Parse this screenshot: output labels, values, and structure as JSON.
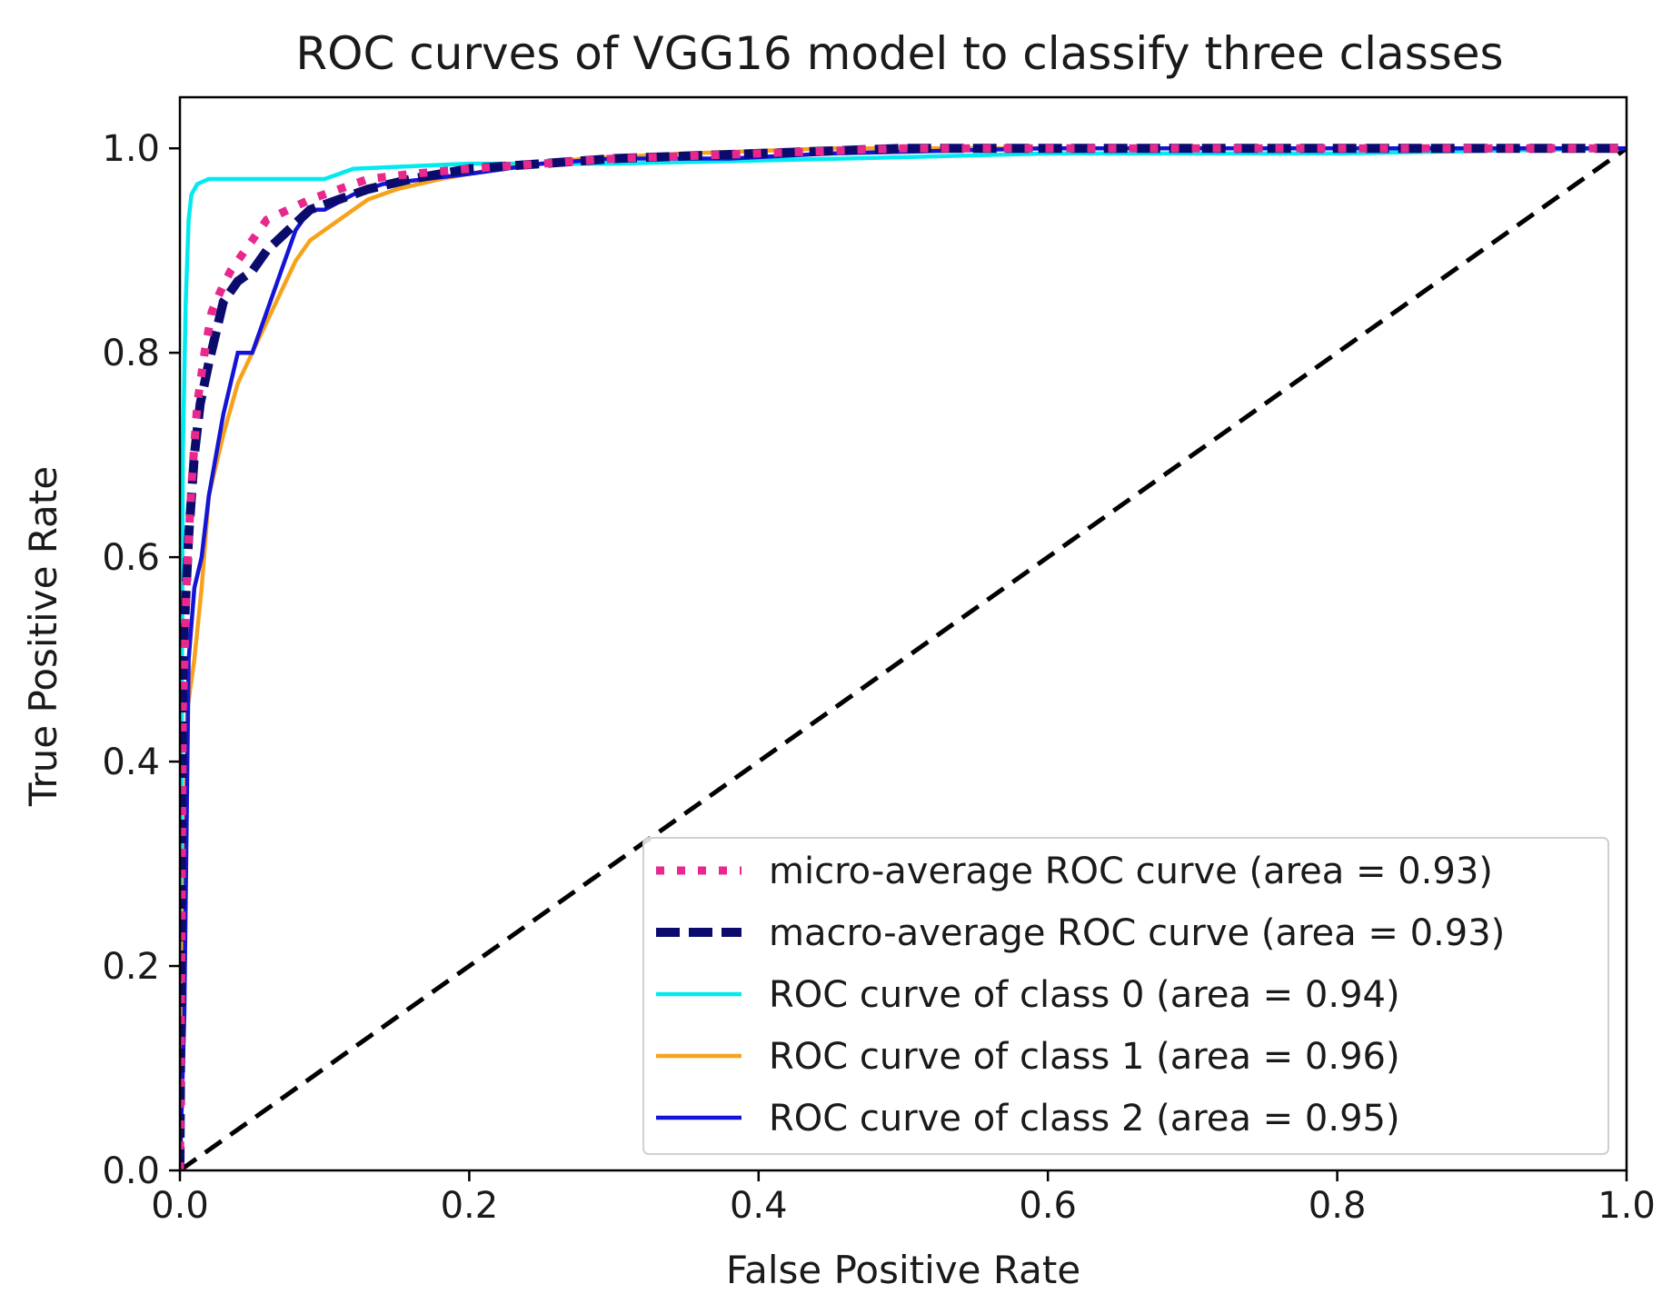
{
  "chart_data": {
    "type": "line",
    "title": "ROC curves of VGG16 model to classify three classes",
    "xlabel": "False Positive Rate",
    "ylabel": "True Positive Rate",
    "xlim": [
      0.0,
      1.0
    ],
    "ylim": [
      0.0,
      1.05
    ],
    "xticks": [
      0.0,
      0.2,
      0.4,
      0.6,
      0.8,
      1.0
    ],
    "xtick_labels": [
      "0.0",
      "0.2",
      "0.4",
      "0.6",
      "0.8",
      "1.0"
    ],
    "yticks": [
      0.0,
      0.2,
      0.4,
      0.6,
      0.8,
      1.0
    ],
    "ytick_labels": [
      "0.0",
      "0.2",
      "0.4",
      "0.6",
      "0.8",
      "1.0"
    ],
    "grid": false,
    "legend_position": "lower-right",
    "series": [
      {
        "name": "micro-average ROC curve (area = 0.93)",
        "color": "#e8288c",
        "style": "dotted",
        "x": [
          0.0,
          0.002,
          0.005,
          0.008,
          0.012,
          0.017,
          0.022,
          0.028,
          0.035,
          0.045,
          0.06,
          0.075,
          0.09,
          0.11,
          0.13,
          0.16,
          0.2,
          0.25,
          0.3,
          0.4,
          0.5,
          0.6,
          0.7,
          0.8,
          0.9,
          1.0
        ],
        "y": [
          0.0,
          0.45,
          0.59,
          0.67,
          0.75,
          0.8,
          0.84,
          0.86,
          0.88,
          0.9,
          0.93,
          0.94,
          0.95,
          0.96,
          0.97,
          0.975,
          0.98,
          0.985,
          0.99,
          0.995,
          1.0,
          1.0,
          1.0,
          1.0,
          1.0,
          1.0
        ]
      },
      {
        "name": "macro-average ROC curve (area = 0.93)",
        "color": "#0b0b6e",
        "style": "dashed",
        "x": [
          0.0,
          0.002,
          0.006,
          0.01,
          0.014,
          0.02,
          0.025,
          0.03,
          0.04,
          0.05,
          0.06,
          0.075,
          0.09,
          0.11,
          0.13,
          0.16,
          0.2,
          0.25,
          0.3,
          0.4,
          0.5,
          0.6,
          0.7,
          0.8,
          0.9,
          1.0
        ],
        "y": [
          0.0,
          0.5,
          0.62,
          0.7,
          0.75,
          0.79,
          0.82,
          0.85,
          0.87,
          0.88,
          0.9,
          0.92,
          0.94,
          0.95,
          0.96,
          0.97,
          0.98,
          0.985,
          0.99,
          0.995,
          1.0,
          1.0,
          1.0,
          1.0,
          1.0,
          1.0
        ]
      },
      {
        "name": "ROC curve of class 0 (area = 0.94)",
        "color": "#00eaf0",
        "style": "solid",
        "x": [
          0.0,
          0.002,
          0.004,
          0.006,
          0.008,
          0.012,
          0.02,
          0.05,
          0.1,
          0.12,
          0.2,
          0.3,
          0.46,
          0.6,
          0.8,
          1.0
        ],
        "y": [
          0.0,
          0.7,
          0.85,
          0.93,
          0.955,
          0.965,
          0.97,
          0.97,
          0.97,
          0.98,
          0.985,
          0.985,
          0.99,
          0.995,
          0.995,
          1.0
        ]
      },
      {
        "name": "ROC curve of class 1 (area = 0.96)",
        "color": "#f7a21b",
        "style": "solid",
        "x": [
          0.0,
          0.005,
          0.01,
          0.015,
          0.02,
          0.03,
          0.04,
          0.05,
          0.06,
          0.07,
          0.08,
          0.09,
          0.1,
          0.11,
          0.13,
          0.15,
          0.18,
          0.22,
          0.28,
          0.35,
          0.45,
          0.6,
          0.8,
          1.0
        ],
        "y": [
          0.0,
          0.45,
          0.5,
          0.57,
          0.66,
          0.72,
          0.77,
          0.8,
          0.83,
          0.86,
          0.89,
          0.91,
          0.92,
          0.93,
          0.95,
          0.96,
          0.97,
          0.98,
          0.99,
          0.995,
          1.0,
          1.0,
          1.0,
          1.0
        ]
      },
      {
        "name": "ROC curve of class 2 (area = 0.95)",
        "color": "#1414d6",
        "style": "solid",
        "x": [
          0.0,
          0.003,
          0.006,
          0.01,
          0.015,
          0.02,
          0.025,
          0.03,
          0.04,
          0.05,
          0.06,
          0.07,
          0.08,
          0.09,
          0.1,
          0.12,
          0.14,
          0.17,
          0.2,
          0.25,
          0.3,
          0.38,
          0.45,
          0.6,
          0.8,
          1.0
        ],
        "y": [
          0.0,
          0.15,
          0.5,
          0.57,
          0.6,
          0.66,
          0.7,
          0.74,
          0.8,
          0.8,
          0.84,
          0.88,
          0.92,
          0.94,
          0.94,
          0.955,
          0.965,
          0.97,
          0.975,
          0.985,
          0.99,
          0.99,
          0.995,
          1.0,
          1.0,
          1.0
        ]
      },
      {
        "name": "chance",
        "color": "#000000",
        "style": "dashed",
        "legend": false,
        "x": [
          0.0,
          1.0
        ],
        "y": [
          0.0,
          1.0
        ]
      }
    ]
  }
}
